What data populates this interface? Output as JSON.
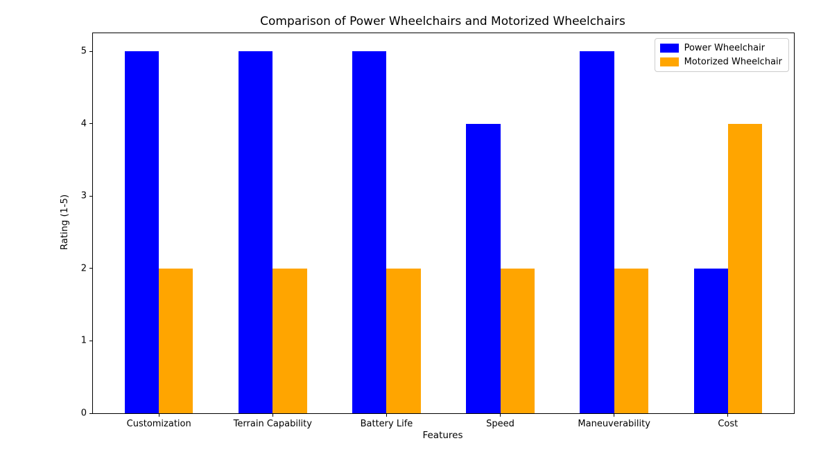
{
  "chart_data": {
    "type": "bar",
    "title": "Comparison of Power Wheelchairs and Motorized Wheelchairs",
    "xlabel": "Features",
    "ylabel": "Rating (1-5)",
    "categories": [
      "Customization",
      "Terrain Capability",
      "Battery Life",
      "Speed",
      "Maneuverability",
      "Cost"
    ],
    "series": [
      {
        "name": "Power Wheelchair",
        "color": "#0000ff",
        "values": [
          5,
          5,
          5,
          4,
          5,
          2
        ]
      },
      {
        "name": "Motorized Wheelchair",
        "color": "#ffa500",
        "values": [
          2,
          2,
          2,
          2,
          2,
          4
        ]
      }
    ],
    "yticks": [
      "0",
      "1",
      "2",
      "3",
      "4",
      "5"
    ],
    "ylim": [
      0,
      5.25
    ],
    "xlim": [
      -0.58,
      5.58
    ],
    "bar_width": 0.3,
    "grid": false,
    "legend_position": "upper-right",
    "background_color": "#ffffff",
    "axis_color": "#000000"
  }
}
